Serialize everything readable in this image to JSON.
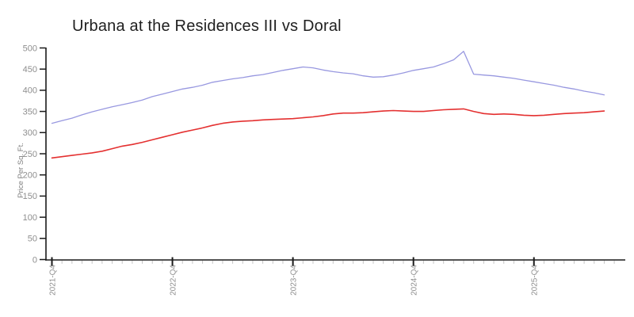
{
  "chart_data": {
    "type": "line",
    "title": "Urbana at the Residences III vs Doral",
    "xlabel": "",
    "ylabel": "Price Per Sq. Ft.",
    "ylim": [
      0,
      500
    ],
    "y_ticks": [
      0,
      50,
      100,
      150,
      200,
      250,
      300,
      350,
      400,
      450,
      500
    ],
    "x_tick_labels": [
      "2021-Q4",
      "2022-Q4",
      "2023-Q4",
      "2024-Q4",
      "2025-Q4"
    ],
    "x_tick_month_indices": [
      0,
      12,
      24,
      36,
      48
    ],
    "grid": false,
    "legend_position": "none",
    "x_minor_tick_unit": "month",
    "months": [
      "2021-10",
      "2021-11",
      "2021-12",
      "2022-01",
      "2022-02",
      "2022-03",
      "2022-04",
      "2022-05",
      "2022-06",
      "2022-07",
      "2022-08",
      "2022-09",
      "2022-10",
      "2022-11",
      "2022-12",
      "2023-01",
      "2023-02",
      "2023-03",
      "2023-04",
      "2023-05",
      "2023-06",
      "2023-07",
      "2023-08",
      "2023-09",
      "2023-10",
      "2023-11",
      "2023-12",
      "2024-01",
      "2024-02",
      "2024-03",
      "2024-04",
      "2024-05",
      "2024-06",
      "2024-07",
      "2024-08",
      "2024-09",
      "2024-10",
      "2024-11",
      "2024-12",
      "2025-01",
      "2025-02",
      "2025-03",
      "2025-04",
      "2025-05",
      "2025-06",
      "2025-07",
      "2025-08",
      "2025-09",
      "2025-10",
      "2025-11",
      "2025-12",
      "2026-01",
      "2026-02",
      "2026-03",
      "2026-04",
      "2026-05"
    ],
    "series": [
      {
        "name": "Urbana at the Residences III",
        "color": "#9898e0",
        "stroke_width": 1.3,
        "values": [
          322,
          328,
          334,
          342,
          349,
          355,
          361,
          366,
          371,
          377,
          385,
          391,
          397,
          403,
          407,
          412,
          419,
          423,
          427,
          430,
          434,
          437,
          442,
          447,
          451,
          455,
          453,
          448,
          444,
          441,
          439,
          434,
          431,
          432,
          436,
          441,
          447,
          451,
          455,
          463,
          472,
          492,
          438,
          436,
          434,
          431,
          428,
          424,
          420,
          416,
          412,
          407,
          403,
          398,
          394,
          389
        ]
      },
      {
        "name": "Doral",
        "color": "#e43030",
        "stroke_width": 1.6,
        "values": [
          240,
          243,
          246,
          249,
          252,
          256,
          262,
          268,
          272,
          277,
          283,
          289,
          295,
          301,
          306,
          311,
          317,
          322,
          325,
          327,
          328,
          330,
          331,
          332,
          333,
          335,
          337,
          340,
          344,
          346,
          346,
          347,
          349,
          351,
          352,
          351,
          350,
          350,
          352,
          354,
          355,
          356,
          350,
          345,
          343,
          344,
          343,
          341,
          340,
          341,
          343,
          345,
          346,
          347,
          349,
          351
        ]
      }
    ],
    "colors": {
      "axis": "#1a1a1a",
      "tick_label": "#8e8e8e",
      "minor_tick": "#c4c4c4",
      "title": "#1f1f1f",
      "y_axis_label": "#7d7d7d",
      "background": "#ffffff"
    }
  }
}
